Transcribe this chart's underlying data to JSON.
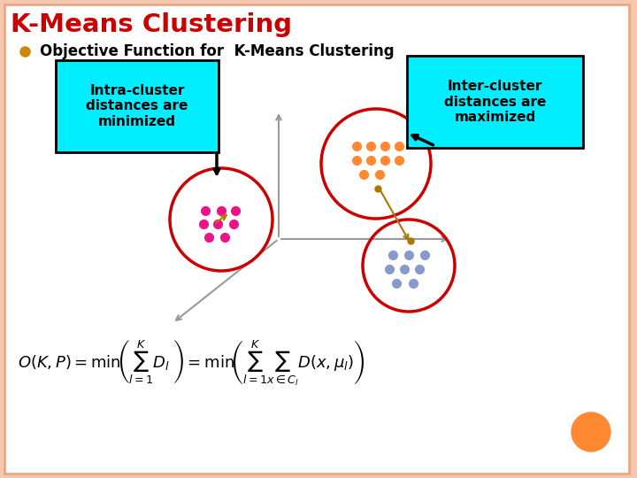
{
  "title": "K-Means Clustering",
  "title_color": "#CC0000",
  "subtitle": "Objective Function for  K-Means Clustering",
  "subtitle_color": "#000000",
  "bg_color": "#F5C8B0",
  "slide_bg": "#FFFFFF",
  "border_color": "#E8A888",
  "intra_box_text": "Intra-cluster\ndistances are\nminimized",
  "inter_box_text": "Inter-cluster\ndistances are\nmaximized",
  "box_color": "#00EEFF",
  "box_text_color": "#000000",
  "cluster1_color": "#EE1188",
  "cluster2_color": "#FF8833",
  "cluster3_color": "#8899CC",
  "circle_color": "#CC0000",
  "axis_color": "#999999",
  "arrow_color": "#AA7700",
  "orange_dot_color": "#FF8833",
  "bullet_color": "#CC8800"
}
